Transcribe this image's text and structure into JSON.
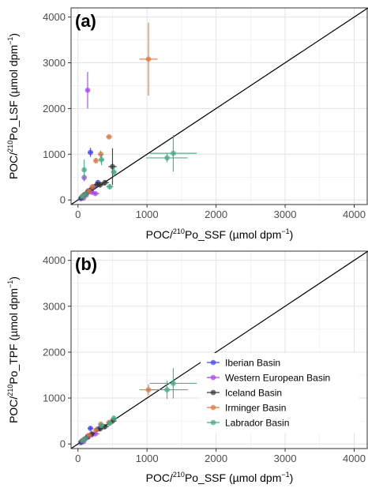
{
  "figure": {
    "legend": [
      "Iberian Basin",
      "Western European Basin",
      "Iceland Basin",
      "Irminger Basin",
      "Labrador Basin"
    ]
  },
  "colors": {
    "Iberian Basin": "#3f3ff5",
    "Western European Basin": "#a53ff0",
    "Iceland Basin": "#333333",
    "Irminger Basin": "#e0723a",
    "Labrador Basin": "#3fa882",
    "one_to_one_line": "#000000",
    "grid": "#ebebeb"
  },
  "chart_data": [
    {
      "type": "scatter",
      "panel_label": "(a)",
      "xlabel_main": "POC/",
      "xlabel_sup": "210",
      "xlabel_rest": "Po_SSF (µmol dpm",
      "xlabel_exp": "−1",
      "xlabel_end": ")",
      "ylabel_main": "POC/",
      "ylabel_sup": "210",
      "ylabel_rest": "Po_LSF (µmol dpm",
      "ylabel_exp": "−1",
      "ylabel_end": ")",
      "xlim": [
        -100,
        4200
      ],
      "ylim": [
        -100,
        4200
      ],
      "xticks": [
        "0",
        "1000",
        "2000",
        "3000",
        "4000"
      ],
      "yticks": [
        "0",
        "1000",
        "2000",
        "3000",
        "4000"
      ],
      "reference_line": "1:1",
      "grid": true,
      "legend_position": "none",
      "series": [
        {
          "name": "Iberian Basin",
          "points": [
            {
              "x": 180,
              "y": 1040,
              "xerr": 40,
              "yerr": 100
            },
            {
              "x": 290,
              "y": 380,
              "xerr": 40,
              "yerr": 50
            },
            {
              "x": 60,
              "y": 60,
              "xerr": 15,
              "yerr": 20
            },
            {
              "x": 100,
              "y": 120,
              "xerr": 20,
              "yerr": 30
            },
            {
              "x": 150,
              "y": 200,
              "xerr": 25,
              "yerr": 40
            },
            {
              "x": 230,
              "y": 280,
              "xerr": 30,
              "yerr": 40
            },
            {
              "x": 40,
              "y": 30,
              "xerr": 10,
              "yerr": 10
            }
          ]
        },
        {
          "name": "Western European Basin",
          "points": [
            {
              "x": 140,
              "y": 2400,
              "xerr": 20,
              "yerr": 400
            },
            {
              "x": 90,
              "y": 490,
              "xerr": 20,
              "yerr": 80
            },
            {
              "x": 250,
              "y": 140,
              "xerr": 60,
              "yerr": 30
            },
            {
              "x": 120,
              "y": 110,
              "xerr": 20,
              "yerr": 20
            },
            {
              "x": 80,
              "y": 40,
              "xerr": 15,
              "yerr": 10
            },
            {
              "x": 200,
              "y": 170,
              "xerr": 30,
              "yerr": 30
            }
          ]
        },
        {
          "name": "Iceland Basin",
          "points": [
            {
              "x": 500,
              "y": 730,
              "xerr": 60,
              "yerr": 400
            },
            {
              "x": 320,
              "y": 330,
              "xerr": 80,
              "yerr": 60
            },
            {
              "x": 390,
              "y": 380,
              "xerr": 60,
              "yerr": 50
            },
            {
              "x": 280,
              "y": 340,
              "xerr": 50,
              "yerr": 40
            },
            {
              "x": 200,
              "y": 250,
              "xerr": 40,
              "yerr": 30
            },
            {
              "x": 140,
              "y": 170,
              "xerr": 30,
              "yerr": 30
            },
            {
              "x": 90,
              "y": 110,
              "xerr": 20,
              "yerr": 20
            },
            {
              "x": 50,
              "y": 50,
              "xerr": 15,
              "yerr": 10
            }
          ]
        },
        {
          "name": "Irminger Basin",
          "points": [
            {
              "x": 1020,
              "y": 3080,
              "xerr": 130,
              "yerr": 800
            },
            {
              "x": 450,
              "y": 1380,
              "xerr": 40,
              "yerr": 30
            },
            {
              "x": 330,
              "y": 1000,
              "xerr": 40,
              "yerr": 80
            },
            {
              "x": 260,
              "y": 860,
              "xerr": 30,
              "yerr": 60
            },
            {
              "x": 210,
              "y": 290,
              "xerr": 30,
              "yerr": 40
            },
            {
              "x": 160,
              "y": 190,
              "xerr": 30,
              "yerr": 30
            },
            {
              "x": 70,
              "y": 90,
              "xerr": 15,
              "yerr": 20
            }
          ]
        },
        {
          "name": "Labrador Basin",
          "points": [
            {
              "x": 1380,
              "y": 1020,
              "xerr": 340,
              "yerr": 400
            },
            {
              "x": 1290,
              "y": 920,
              "xerr": 300,
              "yerr": 100
            },
            {
              "x": 90,
              "y": 660,
              "xerr": 20,
              "yerr": 220
            },
            {
              "x": 520,
              "y": 610,
              "xerr": 40,
              "yerr": 100
            },
            {
              "x": 340,
              "y": 880,
              "xerr": 40,
              "yerr": 120
            },
            {
              "x": 460,
              "y": 290,
              "xerr": 50,
              "yerr": 60
            },
            {
              "x": 110,
              "y": 130,
              "xerr": 20,
              "yerr": 30
            },
            {
              "x": 60,
              "y": 70,
              "xerr": 15,
              "yerr": 20
            }
          ]
        }
      ]
    },
    {
      "type": "scatter",
      "panel_label": "(b)",
      "xlabel_main": "POC/",
      "xlabel_sup": "210",
      "xlabel_rest": "Po_SSF (µmol dpm",
      "xlabel_exp": "−1",
      "xlabel_end": ")",
      "ylabel_main": "POC/",
      "ylabel_sup": "210",
      "ylabel_rest": "Po_TPF (µmol dpm",
      "ylabel_exp": "−1",
      "ylabel_end": ")",
      "xlim": [
        -100,
        4200
      ],
      "ylim": [
        -100,
        4200
      ],
      "xticks": [
        "0",
        "1000",
        "2000",
        "3000",
        "4000"
      ],
      "yticks": [
        "0",
        "1000",
        "2000",
        "3000",
        "4000"
      ],
      "reference_line": "1:1",
      "grid": true,
      "legend_position": "bottom-right",
      "series": [
        {
          "name": "Iberian Basin",
          "points": [
            {
              "x": 180,
              "y": 340,
              "xerr": 40,
              "yerr": 40
            },
            {
              "x": 290,
              "y": 330,
              "xerr": 40,
              "yerr": 40
            },
            {
              "x": 60,
              "y": 60,
              "xerr": 15,
              "yerr": 15
            },
            {
              "x": 100,
              "y": 110,
              "xerr": 20,
              "yerr": 20
            },
            {
              "x": 150,
              "y": 160,
              "xerr": 25,
              "yerr": 25
            },
            {
              "x": 40,
              "y": 30,
              "xerr": 10,
              "yerr": 10
            }
          ]
        },
        {
          "name": "Western European Basin",
          "points": [
            {
              "x": 250,
              "y": 220,
              "xerr": 60,
              "yerr": 30
            },
            {
              "x": 140,
              "y": 170,
              "xerr": 20,
              "yerr": 30
            },
            {
              "x": 90,
              "y": 100,
              "xerr": 20,
              "yerr": 20
            },
            {
              "x": 200,
              "y": 200,
              "xerr": 30,
              "yerr": 30
            },
            {
              "x": 80,
              "y": 50,
              "xerr": 15,
              "yerr": 10
            }
          ]
        },
        {
          "name": "Iceland Basin",
          "points": [
            {
              "x": 500,
              "y": 500,
              "xerr": 60,
              "yerr": 60
            },
            {
              "x": 320,
              "y": 330,
              "xerr": 80,
              "yerr": 50
            },
            {
              "x": 390,
              "y": 380,
              "xerr": 60,
              "yerr": 40
            },
            {
              "x": 200,
              "y": 220,
              "xerr": 40,
              "yerr": 30
            },
            {
              "x": 140,
              "y": 150,
              "xerr": 30,
              "yerr": 20
            },
            {
              "x": 50,
              "y": 50,
              "xerr": 15,
              "yerr": 10
            }
          ]
        },
        {
          "name": "Irminger Basin",
          "points": [
            {
              "x": 1020,
              "y": 1180,
              "xerr": 130,
              "yerr": 120
            },
            {
              "x": 450,
              "y": 470,
              "xerr": 40,
              "yerr": 40
            },
            {
              "x": 330,
              "y": 430,
              "xerr": 40,
              "yerr": 40
            },
            {
              "x": 260,
              "y": 300,
              "xerr": 30,
              "yerr": 30
            },
            {
              "x": 160,
              "y": 190,
              "xerr": 30,
              "yerr": 20
            },
            {
              "x": 70,
              "y": 80,
              "xerr": 15,
              "yerr": 15
            }
          ]
        },
        {
          "name": "Labrador Basin",
          "points": [
            {
              "x": 1380,
              "y": 1320,
              "xerr": 340,
              "yerr": 330
            },
            {
              "x": 1290,
              "y": 1180,
              "xerr": 300,
              "yerr": 200
            },
            {
              "x": 520,
              "y": 560,
              "xerr": 40,
              "yerr": 60
            },
            {
              "x": 460,
              "y": 450,
              "xerr": 50,
              "yerr": 50
            },
            {
              "x": 340,
              "y": 400,
              "xerr": 40,
              "yerr": 40
            },
            {
              "x": 110,
              "y": 120,
              "xerr": 20,
              "yerr": 20
            },
            {
              "x": 60,
              "y": 70,
              "xerr": 15,
              "yerr": 15
            }
          ]
        }
      ]
    }
  ]
}
